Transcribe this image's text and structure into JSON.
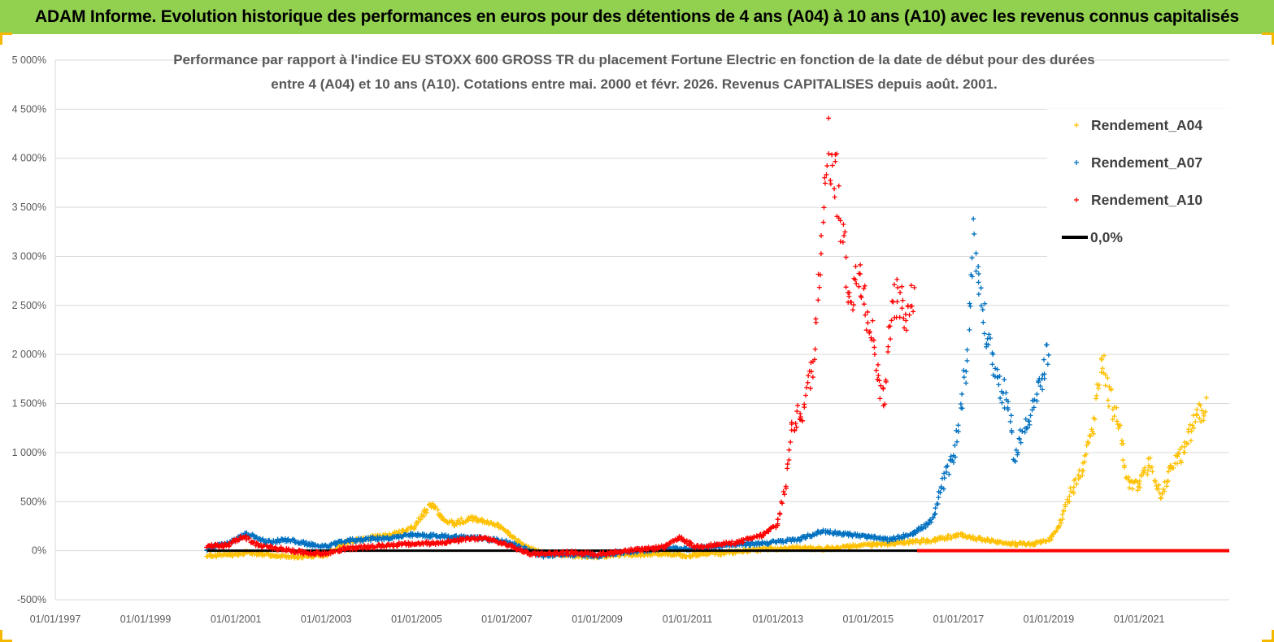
{
  "banner": {
    "title": "ADAM Informe. Evolution historique des performances en euros pour des détentions de 4 ans (A04) à 10 ans (A10) avec les revenus connus capitalisés",
    "background": "#92d050"
  },
  "chart_data": {
    "type": "scatter",
    "title_line1": "Performance par rapport à l'indice EU STOXX 600 GROSS TR  du placement Fortune Electric  en fonction de la date de début pour des durées",
    "title_line2": "entre 4 (A04) et 10 ans (A10). Cotations entre mai. 2000 et févr. 2026. Revenus CAPITALISES depuis août. 2001.",
    "xlabel": "",
    "ylabel": "",
    "xlim": [
      "1997-01-01",
      "2022-12-31"
    ],
    "ylim": [
      -500,
      5000
    ],
    "x_ticks": [
      "01/01/1997",
      "01/01/1999",
      "01/01/2001",
      "01/01/2003",
      "01/01/2005",
      "01/01/2007",
      "01/01/2009",
      "01/01/2011",
      "01/01/2013",
      "01/01/2015",
      "01/01/2017",
      "01/01/2019",
      "01/01/2021"
    ],
    "y_ticks": [
      {
        "value": -500,
        "label": "-500%"
      },
      {
        "value": 0,
        "label": "0%"
      },
      {
        "value": 500,
        "label": "500%"
      },
      {
        "value": 1000,
        "label": "1 000%"
      },
      {
        "value": 1500,
        "label": "1 500%"
      },
      {
        "value": 2000,
        "label": "2 000%"
      },
      {
        "value": 2500,
        "label": "2 500%"
      },
      {
        "value": 3000,
        "label": "3 000%"
      },
      {
        "value": 3500,
        "label": "3 500%"
      },
      {
        "value": 4000,
        "label": "4 000%"
      },
      {
        "value": 4500,
        "label": "4 500%"
      },
      {
        "value": 5000,
        "label": "5 000%"
      }
    ],
    "grid": "horizontal",
    "legend_position": "top-right",
    "series": [
      {
        "name": "Rendement_A04",
        "color": "#ffc000",
        "marker": "+",
        "points": [
          [
            "2000-05-15",
            -50
          ],
          [
            "2000-11-01",
            -45
          ],
          [
            "2001-04-01",
            -20
          ],
          [
            "2001-09-01",
            -40
          ],
          [
            "2002-03-01",
            -60
          ],
          [
            "2002-09-01",
            -55
          ],
          [
            "2003-01-01",
            -40
          ],
          [
            "2003-06-01",
            80
          ],
          [
            "2003-12-01",
            130
          ],
          [
            "2004-06-01",
            160
          ],
          [
            "2004-12-01",
            230
          ],
          [
            "2005-03-01",
            380
          ],
          [
            "2005-05-01",
            470
          ],
          [
            "2005-08-01",
            340
          ],
          [
            "2005-11-01",
            270
          ],
          [
            "2006-03-01",
            330
          ],
          [
            "2006-07-01",
            310
          ],
          [
            "2006-11-01",
            250
          ],
          [
            "2007-02-01",
            160
          ],
          [
            "2007-06-01",
            40
          ],
          [
            "2007-10-01",
            -20
          ],
          [
            "2008-03-01",
            -40
          ],
          [
            "2008-08-01",
            -50
          ],
          [
            "2009-01-01",
            -60
          ],
          [
            "2009-07-01",
            -40
          ],
          [
            "2010-01-01",
            -40
          ],
          [
            "2010-07-01",
            -30
          ],
          [
            "2011-01-01",
            -50
          ],
          [
            "2011-07-01",
            -30
          ],
          [
            "2012-01-01",
            -20
          ],
          [
            "2012-07-01",
            10
          ],
          [
            "2013-01-01",
            20
          ],
          [
            "2013-07-01",
            30
          ],
          [
            "2014-01-01",
            20
          ],
          [
            "2014-07-01",
            40
          ],
          [
            "2015-01-01",
            60
          ],
          [
            "2015-07-01",
            70
          ],
          [
            "2016-01-01",
            90
          ],
          [
            "2016-07-01",
            110
          ],
          [
            "2017-01-01",
            160
          ],
          [
            "2017-07-01",
            120
          ],
          [
            "2018-01-01",
            80
          ],
          [
            "2018-07-01",
            60
          ],
          [
            "2019-01-01",
            100
          ],
          [
            "2019-04-01",
            280
          ],
          [
            "2019-07-01",
            600
          ],
          [
            "2019-10-01",
            800
          ],
          [
            "2020-01-01",
            1300
          ],
          [
            "2020-03-01",
            2050
          ],
          [
            "2020-05-01",
            1600
          ],
          [
            "2020-08-01",
            1200
          ],
          [
            "2020-10-01",
            700
          ],
          [
            "2021-01-01",
            650
          ],
          [
            "2021-04-01",
            900
          ],
          [
            "2021-07-01",
            550
          ],
          [
            "2021-10-01",
            900
          ],
          [
            "2022-01-01",
            1000
          ],
          [
            "2022-04-01",
            1350
          ],
          [
            "2022-07-01",
            1450
          ]
        ]
      },
      {
        "name": "Rendement_A07",
        "color": "#0070c0",
        "marker": "+",
        "points": [
          [
            "2000-05-15",
            20
          ],
          [
            "2000-11-01",
            80
          ],
          [
            "2001-04-01",
            170
          ],
          [
            "2001-09-01",
            90
          ],
          [
            "2002-03-01",
            110
          ],
          [
            "2002-09-01",
            60
          ],
          [
            "2003-01-01",
            40
          ],
          [
            "2003-06-01",
            100
          ],
          [
            "2003-12-01",
            120
          ],
          [
            "2004-06-01",
            130
          ],
          [
            "2004-12-01",
            160
          ],
          [
            "2005-06-01",
            150
          ],
          [
            "2005-12-01",
            140
          ],
          [
            "2006-06-01",
            130
          ],
          [
            "2006-12-01",
            100
          ],
          [
            "2007-06-01",
            20
          ],
          [
            "2007-10-01",
            -50
          ],
          [
            "2008-06-01",
            -40
          ],
          [
            "2009-01-01",
            -50
          ],
          [
            "2009-07-01",
            -20
          ],
          [
            "2010-01-01",
            0
          ],
          [
            "2010-07-01",
            30
          ],
          [
            "2011-01-01",
            20
          ],
          [
            "2011-07-01",
            40
          ],
          [
            "2012-01-01",
            60
          ],
          [
            "2012-07-01",
            70
          ],
          [
            "2013-01-01",
            90
          ],
          [
            "2013-07-01",
            120
          ],
          [
            "2014-01-01",
            200
          ],
          [
            "2014-07-01",
            170
          ],
          [
            "2015-01-01",
            140
          ],
          [
            "2015-07-01",
            110
          ],
          [
            "2016-01-01",
            180
          ],
          [
            "2016-06-01",
            300
          ],
          [
            "2016-09-01",
            700
          ],
          [
            "2016-12-01",
            1000
          ],
          [
            "2017-03-01",
            1850
          ],
          [
            "2017-05-01",
            3200
          ],
          [
            "2017-08-01",
            2300
          ],
          [
            "2017-11-01",
            1800
          ],
          [
            "2018-02-01",
            1500
          ],
          [
            "2018-04-01",
            950
          ],
          [
            "2018-07-01",
            1300
          ],
          [
            "2018-10-01",
            1600
          ],
          [
            "2019-01-01",
            2000
          ]
        ]
      },
      {
        "name": "Rendement_A10",
        "color": "#ff0000",
        "marker": "+",
        "points": [
          [
            "2000-05-15",
            40
          ],
          [
            "2000-11-01",
            60
          ],
          [
            "2001-03-01",
            150
          ],
          [
            "2001-07-01",
            50
          ],
          [
            "2002-01-01",
            20
          ],
          [
            "2002-07-01",
            -20
          ],
          [
            "2003-01-01",
            -30
          ],
          [
            "2003-06-01",
            20
          ],
          [
            "2004-01-01",
            40
          ],
          [
            "2004-07-01",
            60
          ],
          [
            "2005-01-01",
            70
          ],
          [
            "2005-07-01",
            80
          ],
          [
            "2006-01-01",
            110
          ],
          [
            "2006-07-01",
            130
          ],
          [
            "2007-01-01",
            60
          ],
          [
            "2007-07-01",
            -30
          ],
          [
            "2008-01-01",
            -30
          ],
          [
            "2008-07-01",
            -20
          ],
          [
            "2009-01-01",
            -40
          ],
          [
            "2009-07-01",
            -10
          ],
          [
            "2010-01-01",
            10
          ],
          [
            "2010-07-01",
            40
          ],
          [
            "2010-11-01",
            130
          ],
          [
            "2011-03-01",
            40
          ],
          [
            "2011-09-01",
            60
          ],
          [
            "2012-03-01",
            90
          ],
          [
            "2012-09-01",
            160
          ],
          [
            "2013-01-01",
            270
          ],
          [
            "2013-03-01",
            650
          ],
          [
            "2013-05-01",
            1300
          ],
          [
            "2013-08-01",
            1450
          ],
          [
            "2013-11-01",
            2050
          ],
          [
            "2014-02-01",
            4200
          ],
          [
            "2014-05-01",
            3700
          ],
          [
            "2014-08-01",
            2600
          ],
          [
            "2014-11-01",
            2800
          ],
          [
            "2015-02-01",
            2200
          ],
          [
            "2015-05-01",
            1500
          ],
          [
            "2015-08-01",
            2600
          ],
          [
            "2015-11-01",
            2400
          ],
          [
            "2016-01-15",
            2700
          ]
        ]
      },
      {
        "name": "0,0%",
        "color": "#000000",
        "marker": "line",
        "points": [
          [
            "2000-05-15",
            0
          ],
          [
            "2016-02-01",
            0
          ]
        ]
      }
    ],
    "a10_flat_segment": {
      "from": "2016-02-01",
      "to": "2022-12-31",
      "value": 0
    }
  }
}
